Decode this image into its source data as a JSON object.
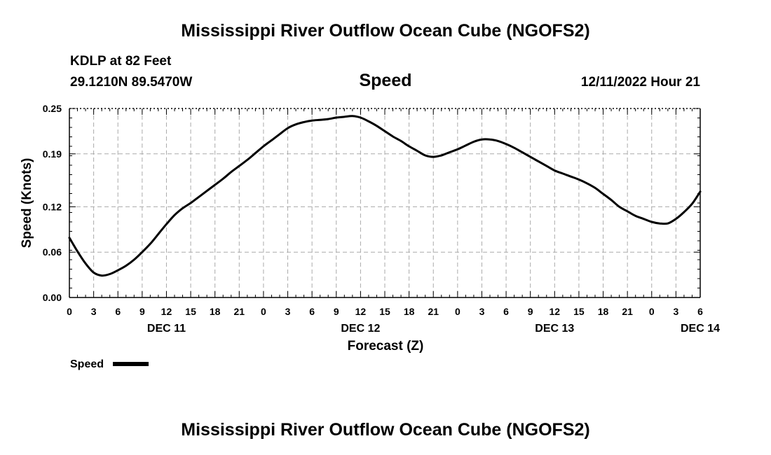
{
  "page": {
    "title_top": "Mississippi River Outflow Ocean Cube (NGOFS2)",
    "title_bottom": "Mississippi River Outflow Ocean Cube (NGOFS2)",
    "station": "KDLP at 82 Feet",
    "coords": "29.1210N  89.5470W",
    "run_time": "12/11/2022 Hour 21"
  },
  "chart_data": {
    "type": "line",
    "title": "Speed",
    "xlabel": "Forecast (Z)",
    "ylabel": "Speed (Knots)",
    "ylim": [
      0,
      0.25
    ],
    "yticks": [
      "0.00",
      "0.06",
      "0.12",
      "0.19",
      "0.25"
    ],
    "xlim": [
      0,
      78
    ],
    "xtick_labels": [
      "0",
      "3",
      "6",
      "9",
      "12",
      "15",
      "18",
      "21",
      "0",
      "3",
      "6",
      "9",
      "12",
      "15",
      "18",
      "21",
      "0",
      "3",
      "6",
      "9",
      "12",
      "15",
      "18",
      "21",
      "0",
      "3",
      "6"
    ],
    "day_labels": [
      {
        "label": "DEC 11",
        "hour": 12
      },
      {
        "label": "DEC 12",
        "hour": 36
      },
      {
        "label": "DEC 13",
        "hour": 60
      },
      {
        "label": "DEC 14",
        "hour": 78
      }
    ],
    "grid": true,
    "legend": "bottom-left",
    "color": "#000000",
    "series": [
      {
        "name": "Speed",
        "x": [
          0,
          1,
          2,
          3,
          4,
          5,
          6,
          7,
          8,
          9,
          10,
          11,
          12,
          13,
          14,
          15,
          16,
          17,
          18,
          19,
          20,
          21,
          22,
          23,
          24,
          25,
          26,
          27,
          28,
          29,
          30,
          31,
          32,
          33,
          34,
          35,
          36,
          37,
          38,
          39,
          40,
          41,
          42,
          43,
          44,
          45,
          46,
          47,
          48,
          49,
          50,
          51,
          52,
          53,
          54,
          55,
          56,
          57,
          58,
          59,
          60,
          61,
          62,
          63,
          64,
          65,
          66,
          67,
          68,
          69,
          70,
          71,
          72,
          73,
          74,
          75,
          76,
          77,
          78
        ],
        "y": [
          0.079,
          0.061,
          0.045,
          0.033,
          0.029,
          0.031,
          0.036,
          0.042,
          0.05,
          0.06,
          0.071,
          0.084,
          0.097,
          0.109,
          0.118,
          0.125,
          0.133,
          0.141,
          0.149,
          0.157,
          0.166,
          0.174,
          0.182,
          0.191,
          0.2,
          0.208,
          0.216,
          0.224,
          0.229,
          0.232,
          0.234,
          0.235,
          0.236,
          0.238,
          0.239,
          0.24,
          0.238,
          0.233,
          0.227,
          0.22,
          0.213,
          0.207,
          0.2,
          0.194,
          0.188,
          0.186,
          0.188,
          0.192,
          0.196,
          0.201,
          0.206,
          0.209,
          0.209,
          0.207,
          0.203,
          0.198,
          0.192,
          0.186,
          0.18,
          0.174,
          0.168,
          0.164,
          0.16,
          0.156,
          0.151,
          0.145,
          0.137,
          0.129,
          0.12,
          0.114,
          0.108,
          0.104,
          0.1,
          0.098,
          0.098,
          0.104,
          0.113,
          0.124,
          0.14
        ]
      }
    ]
  }
}
